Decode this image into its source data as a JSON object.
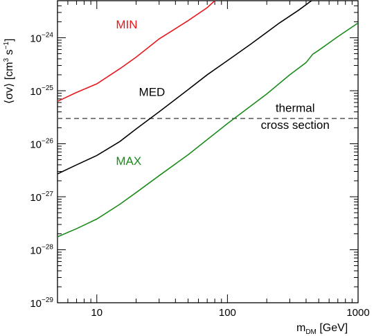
{
  "chart_data": {
    "type": "line",
    "xscale": "log",
    "yscale": "log",
    "xlim": [
      5,
      1000
    ],
    "ylim": [
      1e-29,
      5e-24
    ],
    "grid": false,
    "xlabel": {
      "main": "m",
      "sub": "DM",
      "unit": " [GeV]"
    },
    "ylabel": {
      "prefix": "⟨σv⟩ [cm",
      "sup1": "3",
      "mid": "s",
      "sup2": "−1",
      "suffix": "]"
    },
    "xticks": [
      {
        "value": 10,
        "label": "10"
      },
      {
        "value": 100,
        "label": "100"
      },
      {
        "value": 1000,
        "label": "1000"
      }
    ],
    "yticks": [
      {
        "value": 1e-29,
        "base": "10",
        "exp": "−29"
      },
      {
        "value": 1e-28,
        "base": "10",
        "exp": "−28"
      },
      {
        "value": 1e-27,
        "base": "10",
        "exp": "−27"
      },
      {
        "value": 1e-26,
        "base": "10",
        "exp": "−26"
      },
      {
        "value": 1e-25,
        "base": "10",
        "exp": "−25"
      },
      {
        "value": 1e-24,
        "base": "10",
        "exp": "−24"
      }
    ],
    "series": [
      {
        "name": "MIN",
        "color": "#e8161b",
        "x": [
          5,
          7,
          10,
          15,
          20,
          30,
          50,
          70,
          80
        ],
        "y": [
          6.3e-26,
          9.3e-26,
          1.35e-25,
          2.6e-25,
          4.3e-25,
          9.5e-25,
          2.1e-24,
          3.7e-24,
          5e-24
        ]
      },
      {
        "name": "MED",
        "color": "#000000",
        "x": [
          5,
          7,
          10,
          15,
          20,
          30,
          50,
          70,
          100,
          150,
          250,
          350,
          440
        ],
        "y": [
          2.7e-27,
          4e-27,
          6e-27,
          1.1e-26,
          1.9e-26,
          4e-26,
          1.05e-25,
          2e-25,
          3.7e-25,
          7.5e-25,
          1.9e-24,
          3.3e-24,
          5e-24
        ]
      },
      {
        "name": "MAX",
        "color": "#1a8a1a",
        "x": [
          5,
          7,
          10,
          15,
          20,
          30,
          50,
          100,
          200,
          300,
          400,
          450,
          500,
          700,
          1000
        ],
        "y": [
          1.75e-28,
          2.5e-28,
          3.8e-28,
          7.2e-28,
          1.2e-27,
          2.5e-27,
          6.2e-27,
          2.4e-26,
          8.7e-26,
          2e-25,
          3.4e-25,
          4.9e-25,
          5.8e-25,
          1.05e-24,
          1.9e-24
        ]
      }
    ],
    "reference_line": {
      "y": 3e-26,
      "style": "dashed",
      "color": "#555555"
    },
    "annotations": {
      "min": {
        "text": "MIN",
        "color": "#e8161b",
        "anchor_x": 14,
        "anchor_y": 1.5e-24
      },
      "med": {
        "text": "MED",
        "color": "#000000",
        "anchor_x": 21,
        "anchor_y": 8e-26
      },
      "max": {
        "text": "MAX",
        "color": "#1a8a1a",
        "anchor_x": 14,
        "anchor_y": 4e-27
      },
      "thermal_line1": {
        "text": "thermal",
        "color": "#000000",
        "anchor_x": 330,
        "anchor_y": 4e-26
      },
      "thermal_line2": {
        "text": "cross section",
        "color": "#000000",
        "anchor_x": 330,
        "anchor_y": 1.9e-26
      }
    }
  }
}
